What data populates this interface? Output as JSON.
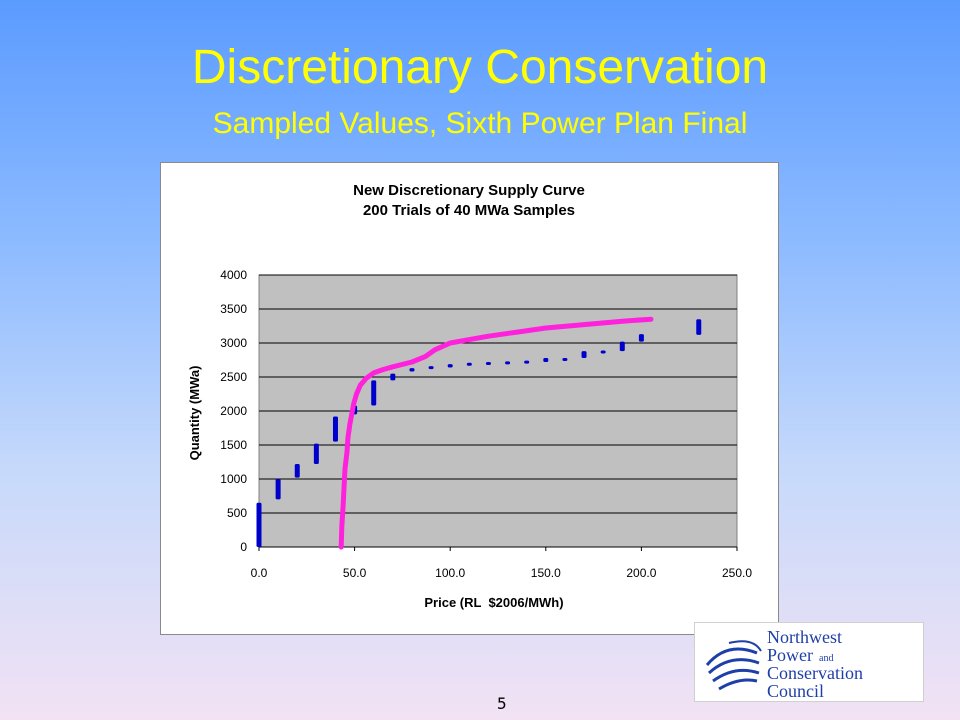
{
  "slide": {
    "title": "Discretionary Conservation",
    "subtitle": "Sampled Values, Sixth Power Plan Final",
    "page_number": "5"
  },
  "logo": {
    "line1": "Northwest",
    "line2": "Power",
    "line2_small": "and",
    "line3": "Conservation",
    "line4": "Council"
  },
  "chart_data": {
    "type": "scatter",
    "title": "New Discretionary Supply Curve",
    "subtitle": "200 Trials of 40 MWa Samples",
    "xlabel": "Price (RL  $2006/MWh)",
    "ylabel": "Quantity (MWa)",
    "xlim": [
      0,
      250
    ],
    "ylim": [
      0,
      4000
    ],
    "x_ticks": [
      "0.0",
      "50.0",
      "100.0",
      "150.0",
      "200.0",
      "250.0"
    ],
    "y_ticks": [
      "0",
      "500",
      "1000",
      "1500",
      "2000",
      "2500",
      "3000",
      "3500",
      "4000"
    ],
    "grid": true,
    "colors": {
      "samples": "#0000cc",
      "curve": "#ff22dd",
      "plot_bg": "#c0c0c0"
    },
    "series": [
      {
        "style": "vertical-bars",
        "points": [
          {
            "x": 0,
            "y_min": 0,
            "y_max": 650
          },
          {
            "x": 10,
            "y_min": 700,
            "y_max": 1000
          },
          {
            "x": 20,
            "y_min": 1020,
            "y_max": 1220
          },
          {
            "x": 30,
            "y_min": 1220,
            "y_max": 1520
          },
          {
            "x": 40,
            "y_min": 1550,
            "y_max": 1920
          },
          {
            "x": 50,
            "y_min": 1950,
            "y_max": 2080
          },
          {
            "x": 60,
            "y_min": 2080,
            "y_max": 2450
          },
          {
            "x": 70,
            "y_min": 2450,
            "y_max": 2550
          },
          {
            "x": 80,
            "y_min": 2580,
            "y_max": 2630
          },
          {
            "x": 90,
            "y_min": 2630,
            "y_max": 2660
          },
          {
            "x": 100,
            "y_min": 2640,
            "y_max": 2690
          },
          {
            "x": 110,
            "y_min": 2680,
            "y_max": 2710
          },
          {
            "x": 120,
            "y_min": 2700,
            "y_max": 2720
          },
          {
            "x": 130,
            "y_min": 2710,
            "y_max": 2730
          },
          {
            "x": 140,
            "y_min": 2720,
            "y_max": 2740
          },
          {
            "x": 150,
            "y_min": 2720,
            "y_max": 2780
          },
          {
            "x": 160,
            "y_min": 2760,
            "y_max": 2780
          },
          {
            "x": 170,
            "y_min": 2780,
            "y_max": 2880
          },
          {
            "x": 180,
            "y_min": 2870,
            "y_max": 2890
          },
          {
            "x": 190,
            "y_min": 2880,
            "y_max": 3020
          },
          {
            "x": 200,
            "y_min": 3020,
            "y_max": 3130
          },
          {
            "x": 230,
            "y_min": 3120,
            "y_max": 3350
          }
        ]
      },
      {
        "style": "curve",
        "points": [
          [
            43,
            0
          ],
          [
            43.3,
            300
          ],
          [
            44,
            600
          ],
          [
            44.5,
            900
          ],
          [
            45,
            1150
          ],
          [
            46,
            1400
          ],
          [
            46.5,
            1600
          ],
          [
            47.5,
            1800
          ],
          [
            48.5,
            1950
          ],
          [
            49.5,
            2100
          ],
          [
            51,
            2250
          ],
          [
            53,
            2380
          ],
          [
            56,
            2480
          ],
          [
            60,
            2560
          ],
          [
            65,
            2610
          ],
          [
            70,
            2650
          ],
          [
            80,
            2720
          ],
          [
            87,
            2800
          ],
          [
            92,
            2900
          ],
          [
            100,
            3000
          ],
          [
            110,
            3050
          ],
          [
            120,
            3100
          ],
          [
            135,
            3160
          ],
          [
            150,
            3220
          ],
          [
            170,
            3270
          ],
          [
            190,
            3320
          ],
          [
            205,
            3350
          ]
        ]
      }
    ]
  }
}
